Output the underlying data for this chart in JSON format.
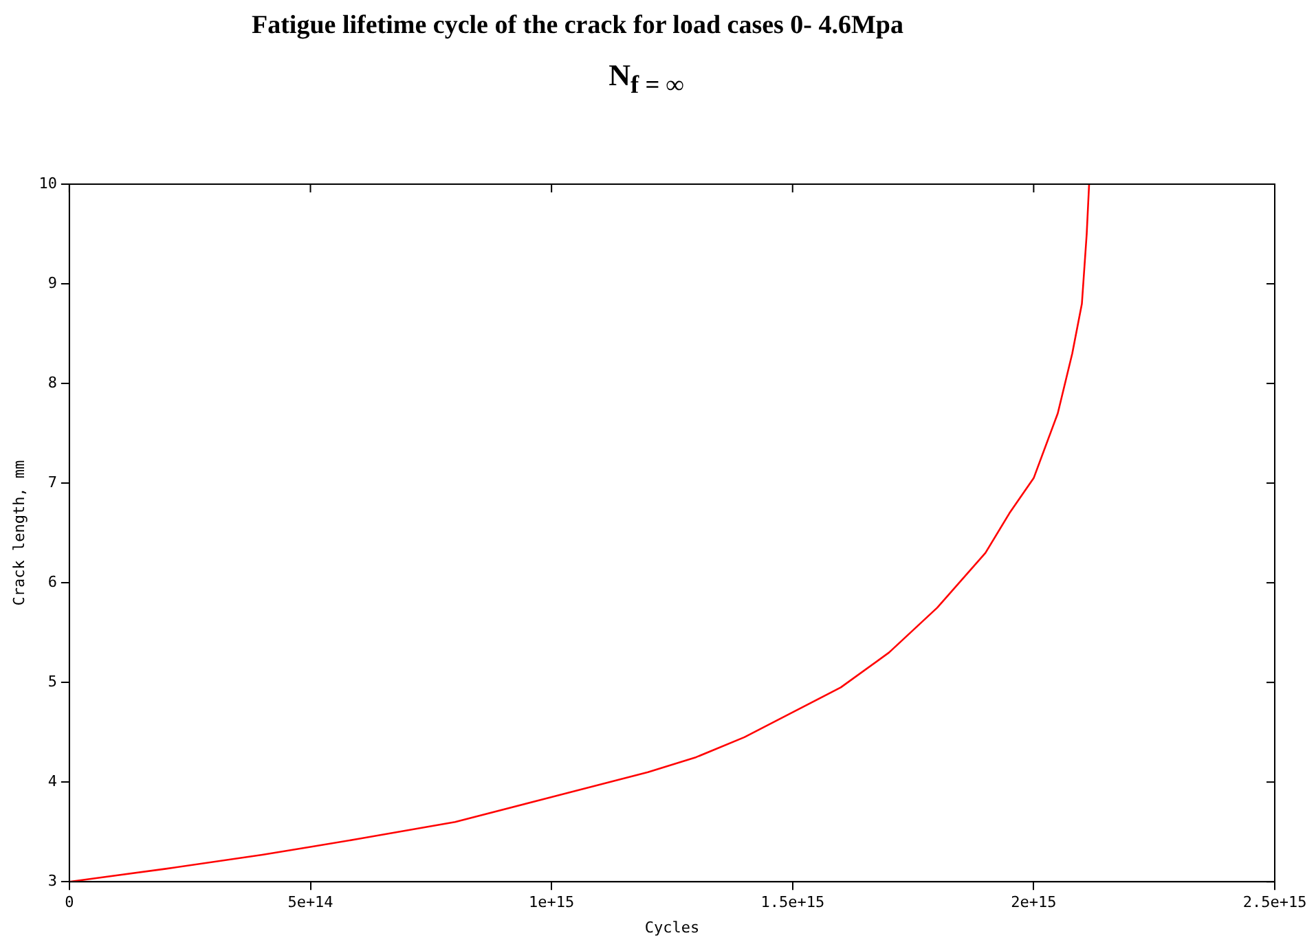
{
  "chart_data": {
    "type": "line",
    "title": "Fatigue lifetime cycle of the crack  for load cases 0- 4.6Mpa",
    "subtitle": "N$_{f = ∞}$",
    "xlabel": "Cycles",
    "ylabel": "Crack length, mm",
    "x": [
      0,
      200000000000000.0,
      400000000000000.0,
      500000000000000.0,
      600000000000000.0,
      800000000000000.0,
      1000000000000000.0,
      1200000000000000.0,
      1300000000000000.0,
      1400000000000000.0,
      1500000000000000.0,
      1600000000000000.0,
      1700000000000000.0,
      1800000000000000.0,
      1900000000000000.0,
      1950000000000000.0,
      2000000000000000.0,
      2050000000000000.0,
      2080000000000000.0,
      2100000000000000.0,
      2110000000000000.0,
      2115000000000000.0
    ],
    "series": [
      {
        "color": "#ff0000",
        "values": [
          3,
          3.13,
          3.27,
          3.35,
          3.43,
          3.6,
          3.85,
          4.1,
          4.25,
          4.45,
          4.7,
          4.95,
          5.3,
          5.75,
          6.3,
          6.7,
          7.05,
          7.7,
          8.3,
          8.8,
          9.5,
          10
        ]
      }
    ],
    "xlim": [
      0,
      2500000000000000.0
    ],
    "xticks": [
      0,
      {
        "value": 500000000000000.0,
        "label": "5e+14"
      },
      {
        "value": 1000000000000000.0,
        "label": "1e+15"
      },
      {
        "value": 1500000000000000.0,
        "label": "1.5e+15"
      },
      {
        "value": 2000000000000000.0,
        "label": "2e+15"
      },
      {
        "value": 2500000000000000.0,
        "label": "2.5e+15"
      }
    ],
    "ylim": [
      3,
      10
    ],
    "yticks": [
      3,
      4,
      5,
      6,
      7,
      8,
      9,
      10
    ],
    "grid": false,
    "legend": false,
    "marker": "none",
    "line_style": "solid"
  }
}
